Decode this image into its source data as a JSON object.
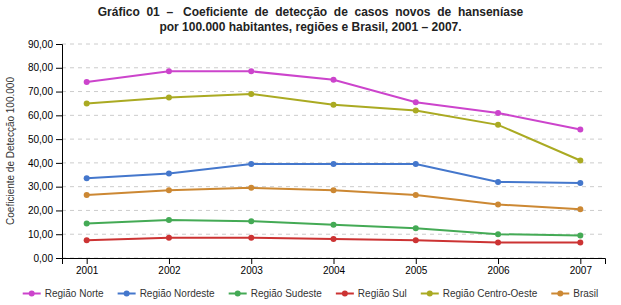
{
  "chart_data": {
    "type": "line",
    "title": "Gráfico  01  –   Coeficiente  de  detecção  de  casos  novos  de  hanseníase",
    "subtitle": "por 100.000 habitantes, regiões e Brasil, 2001 – 2007.",
    "ylabel": "Coeficiente de Detecção 100.000",
    "x": [
      2001,
      2002,
      2003,
      2004,
      2005,
      2006,
      2007
    ],
    "xlim": [
      2000.7,
      2007.3
    ],
    "xticks": [
      2001,
      2002,
      2003,
      2004,
      2005,
      2006,
      2007
    ],
    "ylim": [
      0,
      90
    ],
    "yticks": [
      {
        "value": 0,
        "label": "0,00"
      },
      {
        "value": 10,
        "label": "10,00"
      },
      {
        "value": 20,
        "label": "20,00"
      },
      {
        "value": 30,
        "label": "30,00"
      },
      {
        "value": 40,
        "label": "40,00"
      },
      {
        "value": 50,
        "label": "50,00"
      },
      {
        "value": 60,
        "label": "60,00"
      },
      {
        "value": 70,
        "label": "70,00"
      },
      {
        "value": 80,
        "label": "80,00"
      },
      {
        "value": 90,
        "label": "90,00"
      }
    ],
    "grid": true,
    "legend": "bottom",
    "marker": "circle",
    "series": [
      {
        "name": "Região Norte",
        "color": "#cc44cc",
        "values": [
          74.0,
          78.5,
          78.5,
          75.0,
          65.5,
          61.0,
          54.0
        ]
      },
      {
        "name": "Região Nordeste",
        "color": "#4477cc",
        "values": [
          33.5,
          35.5,
          39.5,
          39.5,
          39.5,
          32.0,
          31.5
        ]
      },
      {
        "name": "Região Sudeste",
        "color": "#44aa55",
        "values": [
          14.5,
          16.0,
          15.5,
          14.0,
          12.5,
          10.0,
          9.5
        ]
      },
      {
        "name": "Região Sul",
        "color": "#cc3333",
        "values": [
          7.5,
          8.5,
          8.5,
          8.0,
          7.5,
          6.5,
          6.5
        ]
      },
      {
        "name": "Região Centro-Oeste",
        "color": "#aaaa22",
        "values": [
          65.0,
          67.5,
          69.0,
          64.5,
          62.0,
          56.0,
          41.0
        ]
      },
      {
        "name": "Brasil",
        "color": "#cc8833",
        "values": [
          26.5,
          28.5,
          29.5,
          28.5,
          26.5,
          22.5,
          20.5
        ]
      }
    ]
  }
}
